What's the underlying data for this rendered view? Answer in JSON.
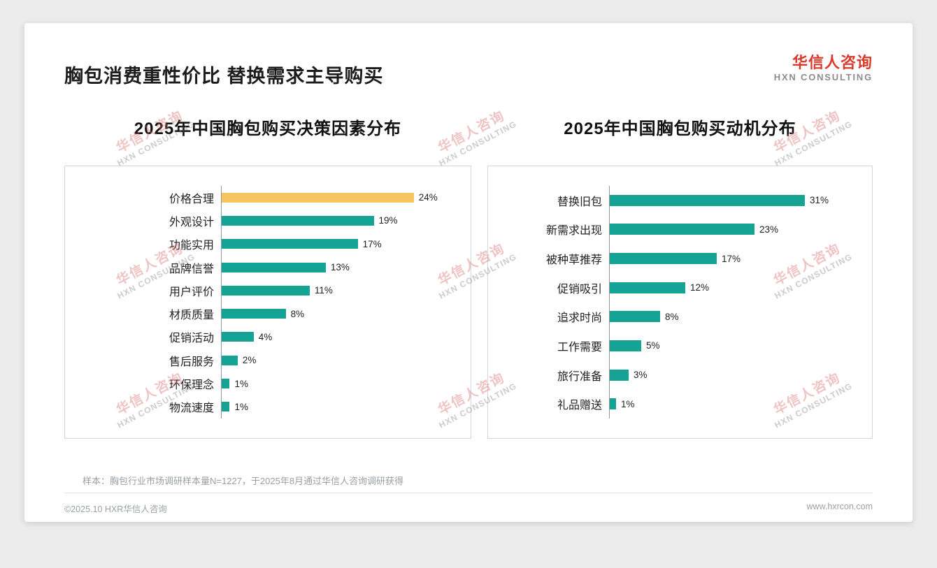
{
  "page": {
    "title": "胸包消费重性价比 替换需求主导购买",
    "note": "样本：胸包行业市场调研样本量N=1227，于2025年8月通过华信人咨询调研获得",
    "footer_left": "©2025.10 HXR华信人咨询",
    "footer_right": "www.hxrcon.com",
    "watermark": {
      "line1": "华信人咨询",
      "line2": "HXN CONSULTING"
    }
  },
  "logo": {
    "name_cn": "华信人咨询",
    "name_en": "HXN CONSULTING"
  },
  "colors": {
    "teal": "#14a394",
    "highlight": "#f6c55f",
    "brand_red": "#d93a2b"
  },
  "chart_data": [
    {
      "type": "bar",
      "orientation": "horizontal",
      "title": "2025年中国胸包购买决策因素分布",
      "categories": [
        "价格合理",
        "外观设计",
        "功能实用",
        "品牌信誉",
        "用户评价",
        "材质质量",
        "促销活动",
        "售后服务",
        "环保理念",
        "物流速度"
      ],
      "values": [
        24,
        19,
        17,
        13,
        11,
        8,
        4,
        2,
        1,
        1
      ],
      "value_labels": [
        "24%",
        "19%",
        "17%",
        "13%",
        "11%",
        "8%",
        "4%",
        "2%",
        "1%",
        "1%"
      ],
      "highlight_index": 0,
      "axis_max": 29,
      "legend": "none",
      "grid": "off"
    },
    {
      "type": "bar",
      "orientation": "horizontal",
      "title": "2025年中国胸包购买动机分布",
      "categories": [
        "替换旧包",
        "新需求出现",
        "被种草推荐",
        "促销吸引",
        "追求时尚",
        "工作需要",
        "旅行准备",
        "礼品赠送"
      ],
      "values": [
        31,
        23,
        17,
        12,
        8,
        5,
        3,
        1
      ],
      "value_labels": [
        "31%",
        "23%",
        "17%",
        "12%",
        "8%",
        "5%",
        "3%",
        "1%"
      ],
      "highlight_index": -1,
      "axis_max": 39,
      "legend": "none",
      "grid": "off"
    }
  ]
}
